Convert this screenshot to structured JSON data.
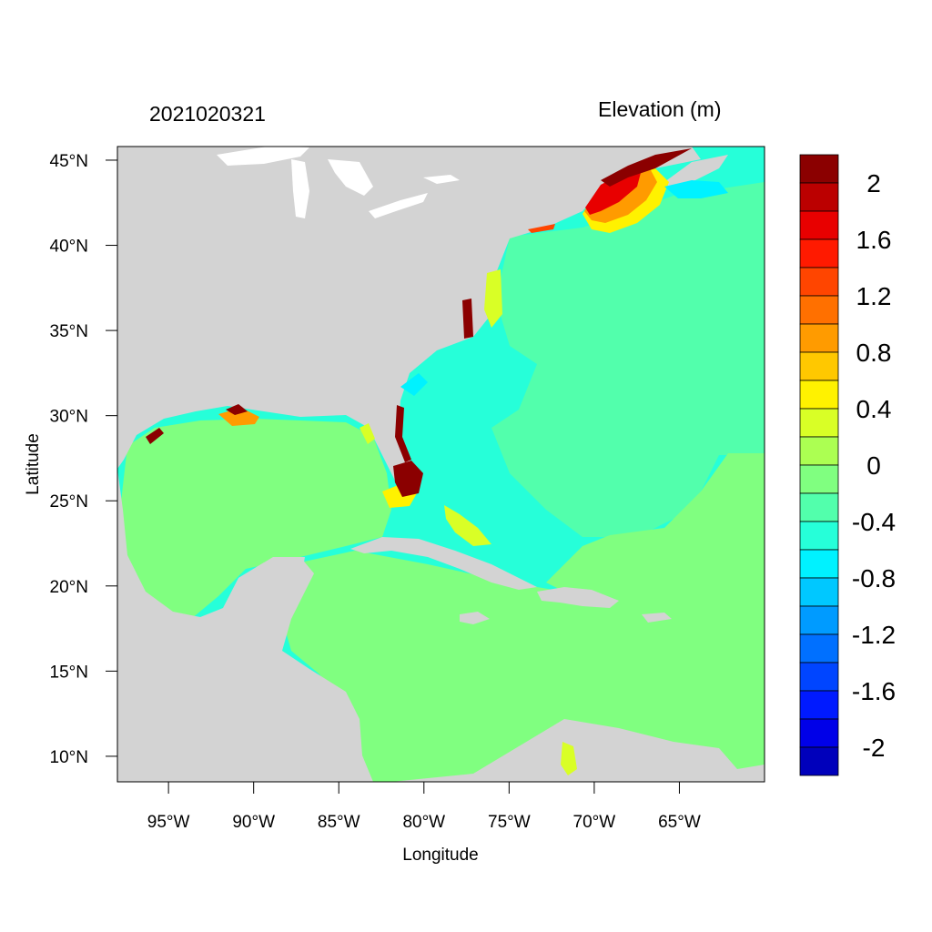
{
  "plot": {
    "timestamp": "2021020321",
    "variable_title": "Elevation (m)",
    "xlabel": "Longitude",
    "ylabel": "Latitude"
  },
  "axes": {
    "x_ticks": [
      {
        "lon": -95,
        "label": "95°W"
      },
      {
        "lon": -90,
        "label": "90°W"
      },
      {
        "lon": -85,
        "label": "85°W"
      },
      {
        "lon": -80,
        "label": "80°W"
      },
      {
        "lon": -75,
        "label": "75°W"
      },
      {
        "lon": -70,
        "label": "70°W"
      },
      {
        "lon": -65,
        "label": "65°W"
      }
    ],
    "y_ticks": [
      {
        "lat": 45,
        "label": "45°N"
      },
      {
        "lat": 40,
        "label": "40°N"
      },
      {
        "lat": 35,
        "label": "35°N"
      },
      {
        "lat": 30,
        "label": "30°N"
      },
      {
        "lat": 25,
        "label": "25°N"
      },
      {
        "lat": 20,
        "label": "20°N"
      },
      {
        "lat": 15,
        "label": "15°N"
      },
      {
        "lat": 10,
        "label": "10°N"
      }
    ],
    "lon_range": [
      -98,
      -60
    ],
    "lat_range": [
      8.5,
      45.8
    ]
  },
  "colorbar": {
    "colors": [
      "#8b0000",
      "#bb0000",
      "#e80000",
      "#ff1a00",
      "#ff4500",
      "#ff7000",
      "#ff9b00",
      "#ffc800",
      "#fff200",
      "#d9ff26",
      "#acff52",
      "#80ff80",
      "#52ffac",
      "#26ffd9",
      "#00f2ff",
      "#00c8ff",
      "#009bff",
      "#0070ff",
      "#0045ff",
      "#001aff",
      "#0000e8",
      "#0000bb"
    ],
    "labels": [
      "2",
      "1.6",
      "1.2",
      "0.8",
      "0.4",
      "0",
      "-0.4",
      "-0.8",
      "-1.2",
      "-1.6",
      "-2"
    ]
  },
  "map_colors": {
    "land": "#d3d3d3",
    "lakes": "#ffffff",
    "gulf_caribbean": "#80ff80",
    "atlantic_shelf": "#52ffac",
    "atlantic_deep": "#26ffd9",
    "near_zero_positive": "#acff52"
  }
}
